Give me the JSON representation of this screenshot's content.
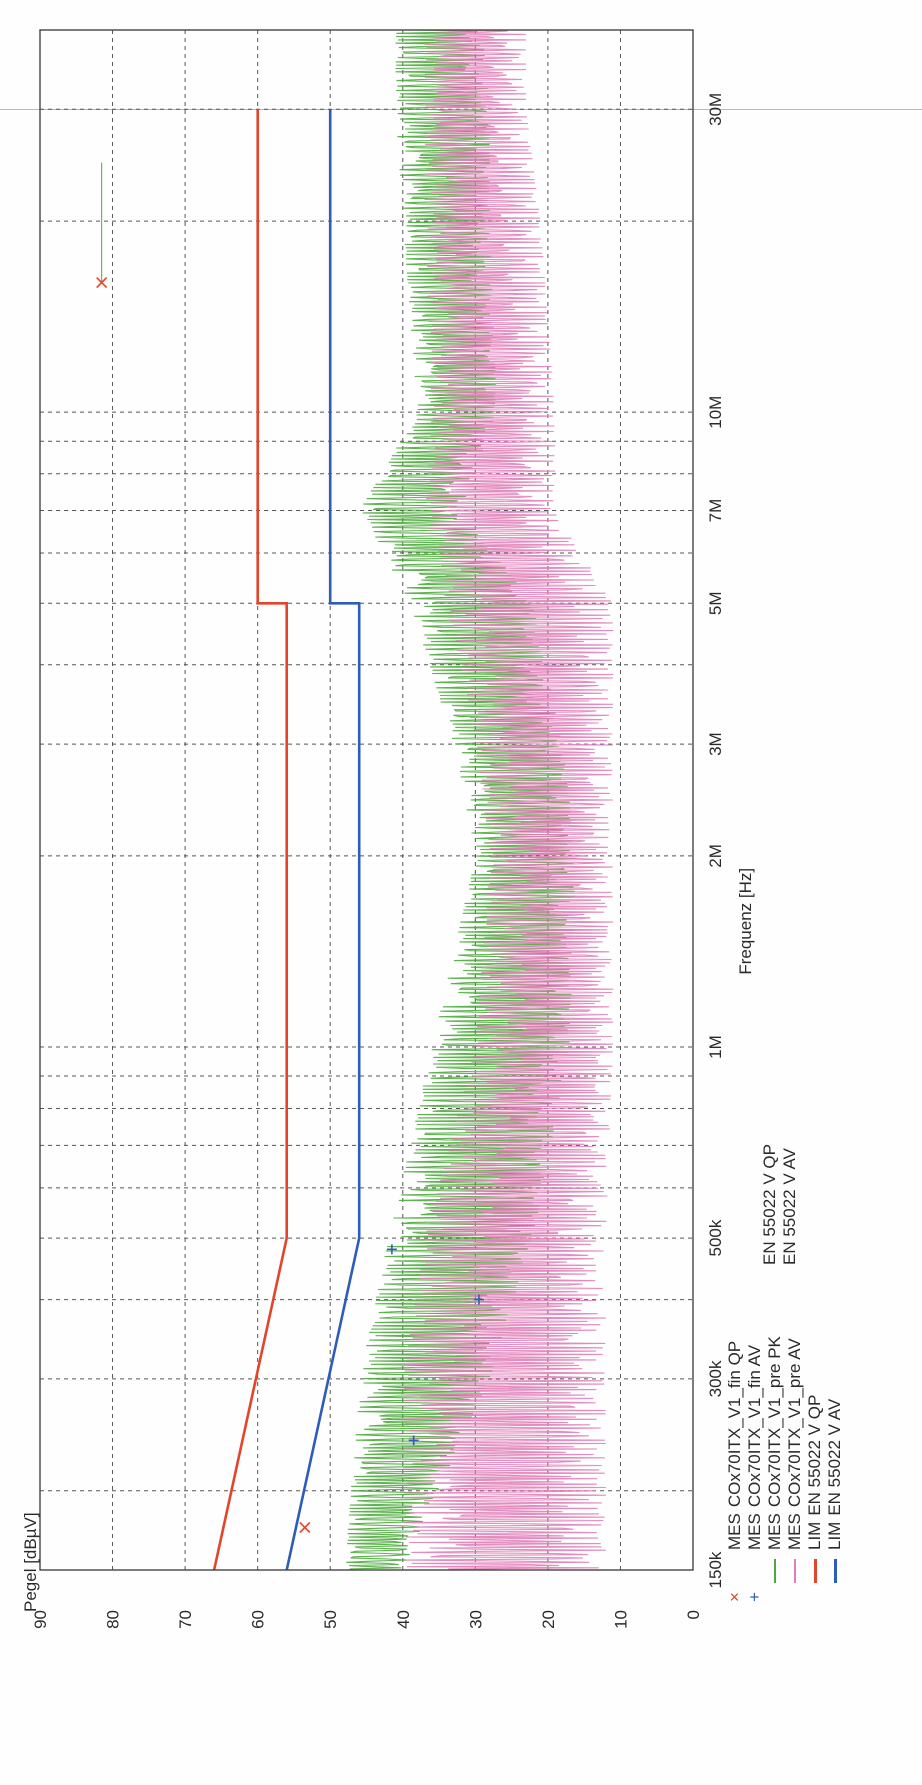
{
  "chart_data": {
    "type": "line",
    "x_scale": "log",
    "ylabel": "Pegel [dBµV]",
    "xlabel": "Frequenz [Hz]",
    "xlim": [
      150000,
      40000000
    ],
    "ylim": [
      0,
      90
    ],
    "y_ticks": [
      0,
      10,
      20,
      30,
      40,
      50,
      60,
      70,
      80,
      90
    ],
    "x_ticks": [
      {
        "value": 150000,
        "label": "150k"
      },
      {
        "value": 300000,
        "label": "300k"
      },
      {
        "value": 500000,
        "label": "500k"
      },
      {
        "value": 1000000,
        "label": "1M"
      },
      {
        "value": 2000000,
        "label": "2M"
      },
      {
        "value": 3000000,
        "label": "3M"
      },
      {
        "value": 5000000,
        "label": "5M"
      },
      {
        "value": 7000000,
        "label": "7M"
      },
      {
        "value": 10000000,
        "label": "10M"
      },
      {
        "value": 30000000,
        "label": "30M"
      }
    ],
    "grid": true,
    "limits": [
      {
        "name": "EN 55022 V QP",
        "color": "#e2452a",
        "x": [
          150000,
          500000,
          5000000,
          5000000,
          30000000
        ],
        "y": [
          66,
          56,
          56,
          60,
          60
        ]
      },
      {
        "name": "EN 55022 V AV",
        "color": "#2d5db8",
        "x": [
          150000,
          500000,
          5000000,
          5000000,
          30000000
        ],
        "y": [
          56,
          46,
          46,
          50,
          50
        ]
      }
    ],
    "measurements": [
      {
        "name": "COx70ITX_V1_fin QP",
        "marker": "x",
        "color": "#e2452a",
        "points": [
          {
            "x": 175000,
            "y": 53.5
          },
          {
            "x": 16000000,
            "y": 81.5
          }
        ]
      },
      {
        "name": "COx70ITX_V1_fin AV",
        "marker": "+",
        "color": "#2d5db8",
        "points": [
          {
            "x": 240000,
            "y": 38.5
          },
          {
            "x": 400000,
            "y": 29.5
          },
          {
            "x": 480000,
            "y": 41.5
          }
        ]
      }
    ],
    "series": [
      {
        "name": "COx70ITX_V1_pre PK",
        "color": "#4caa3c",
        "envelope": [
          {
            "x": 150000,
            "lo": 40,
            "hi": 48
          },
          {
            "x": 300000,
            "lo": 28,
            "hi": 46
          },
          {
            "x": 500000,
            "lo": 22,
            "hi": 42
          },
          {
            "x": 1000000,
            "lo": 17,
            "hi": 36
          },
          {
            "x": 2000000,
            "lo": 16,
            "hi": 30
          },
          {
            "x": 3000000,
            "lo": 18,
            "hi": 33
          },
          {
            "x": 5000000,
            "lo": 22,
            "hi": 39
          },
          {
            "x": 7000000,
            "lo": 32,
            "hi": 46
          },
          {
            "x": 10000000,
            "lo": 27,
            "hi": 38
          },
          {
            "x": 20000000,
            "lo": 28,
            "hi": 40
          },
          {
            "x": 30000000,
            "lo": 28,
            "hi": 41
          },
          {
            "x": 40000000,
            "lo": 29,
            "hi": 41
          }
        ]
      },
      {
        "name": "COx70ITX_V1_pre AV",
        "color": "#e080b8",
        "envelope": [
          {
            "x": 150000,
            "lo": 12,
            "hi": 40
          },
          {
            "x": 300000,
            "lo": 12,
            "hi": 40
          },
          {
            "x": 500000,
            "lo": 12,
            "hi": 37
          },
          {
            "x": 1000000,
            "lo": 11,
            "hi": 30
          },
          {
            "x": 2000000,
            "lo": 11,
            "hi": 28
          },
          {
            "x": 3000000,
            "lo": 11,
            "hi": 30
          },
          {
            "x": 5000000,
            "lo": 11,
            "hi": 34
          },
          {
            "x": 7000000,
            "lo": 19,
            "hi": 37
          },
          {
            "x": 10000000,
            "lo": 19,
            "hi": 36
          },
          {
            "x": 20000000,
            "lo": 21,
            "hi": 37
          },
          {
            "x": 30000000,
            "lo": 23,
            "hi": 37
          },
          {
            "x": 40000000,
            "lo": 23,
            "hi": 37
          }
        ]
      }
    ]
  },
  "legend": {
    "entries": [
      {
        "type": "MES",
        "name": "COx70ITX_V1_fin QP",
        "marker": "x",
        "color": "#e2452a"
      },
      {
        "type": "MES",
        "name": "COx70ITX_V1_fin AV",
        "marker": "+",
        "color": "#2d5db8"
      },
      {
        "type": "MES",
        "name": "COx70ITX_V1_pre PK",
        "marker": "",
        "color": "#4caa3c"
      },
      {
        "type": "MES",
        "name": "COx70ITX_V1_pre AV",
        "marker": "",
        "color": "#e080b8"
      },
      {
        "type": "LIM",
        "name": "EN 55022 V QP",
        "marker": "",
        "color": "#e2452a"
      },
      {
        "type": "LIM",
        "name": "EN 55022 V AV",
        "marker": "",
        "color": "#2d5db8"
      }
    ],
    "limit_labels": [
      "EN 55022 V QP",
      "EN 55022 V AV"
    ]
  }
}
